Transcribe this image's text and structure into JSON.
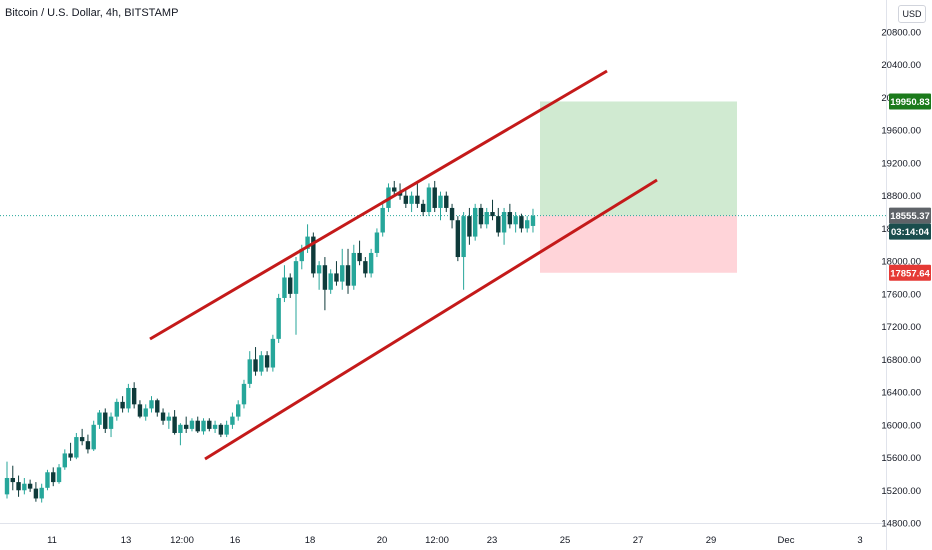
{
  "header": {
    "title": "Bitcoin / U.S. Dollar, 4h, BITSTAMP",
    "currency_button": "USD"
  },
  "colors": {
    "up": "#26a69a",
    "down": "#0e3a3a",
    "channel": "#c41a1a",
    "target_zone": "#c8e6c9",
    "stop_zone": "#ffcdd2",
    "target_label": "#1b7a1b",
    "stop_label": "#e53935",
    "price_label": "#5f6368",
    "countdown_label": "#1a4d4d"
  },
  "chart_data": {
    "type": "candlestick",
    "title": "Bitcoin / U.S. Dollar, 4h, BITSTAMP",
    "ylim": [
      14800,
      21000
    ],
    "y_ticks": [
      "14800.00",
      "15200.00",
      "15600.00",
      "16000.00",
      "16400.00",
      "16800.00",
      "17200.00",
      "17600.00",
      "18000.00",
      "18400.00",
      "18800.00",
      "19200.00",
      "19600.00",
      "20000.00",
      "20400.00",
      "20800.00"
    ],
    "x_ticks": [
      "11",
      "13",
      "12:00",
      "16",
      "18",
      "20",
      "12:00",
      "23",
      "25",
      "27",
      "29",
      "Dec",
      "3"
    ],
    "price_labels": {
      "target": "19950.83",
      "current": "18555.37",
      "countdown": "03:14:04",
      "stop": "17857.64"
    },
    "current_price": 18555.37,
    "target_price": 19950.83,
    "stop_price": 17857.64,
    "candles": [
      [
        15150,
        15550,
        15100,
        15350
      ],
      [
        15350,
        15500,
        15200,
        15300
      ],
      [
        15300,
        15380,
        15120,
        15200
      ],
      [
        15200,
        15350,
        15150,
        15280
      ],
      [
        15280,
        15330,
        15180,
        15220
      ],
      [
        15220,
        15300,
        15060,
        15100
      ],
      [
        15100,
        15280,
        15050,
        15230
      ],
      [
        15230,
        15450,
        15200,
        15420
      ],
      [
        15420,
        15480,
        15250,
        15300
      ],
      [
        15300,
        15520,
        15280,
        15480
      ],
      [
        15480,
        15700,
        15450,
        15650
      ],
      [
        15650,
        15780,
        15560,
        15600
      ],
      [
        15600,
        15900,
        15580,
        15850
      ],
      [
        15850,
        15950,
        15750,
        15800
      ],
      [
        15800,
        15880,
        15650,
        15700
      ],
      [
        15700,
        16050,
        15680,
        16000
      ],
      [
        16000,
        16180,
        15950,
        16150
      ],
      [
        16150,
        16200,
        15900,
        15950
      ],
      [
        15950,
        16150,
        15850,
        16100
      ],
      [
        16100,
        16320,
        16050,
        16280
      ],
      [
        16280,
        16350,
        16150,
        16200
      ],
      [
        16200,
        16500,
        16150,
        16450
      ],
      [
        16450,
        16520,
        16200,
        16250
      ],
      [
        16250,
        16300,
        16080,
        16100
      ],
      [
        16100,
        16250,
        16050,
        16200
      ],
      [
        16200,
        16350,
        16150,
        16300
      ],
      [
        16300,
        16320,
        16100,
        16150
      ],
      [
        16150,
        16200,
        16000,
        16050
      ],
      [
        16050,
        16150,
        15950,
        16100
      ],
      [
        16100,
        16180,
        15880,
        15900
      ],
      [
        15900,
        16020,
        15750,
        16000
      ],
      [
        16000,
        16100,
        15900,
        15950
      ],
      [
        15950,
        16080,
        15920,
        16050
      ],
      [
        16050,
        16100,
        15900,
        15920
      ],
      [
        15920,
        16080,
        15880,
        16050
      ],
      [
        16050,
        16080,
        15920,
        15950
      ],
      [
        15950,
        16050,
        15900,
        16000
      ],
      [
        16000,
        16020,
        15850,
        15880
      ],
      [
        15880,
        16050,
        15850,
        16000
      ],
      [
        16000,
        16150,
        15950,
        16100
      ],
      [
        16100,
        16300,
        16050,
        16250
      ],
      [
        16250,
        16550,
        16200,
        16500
      ],
      [
        16500,
        16900,
        16450,
        16800
      ],
      [
        16800,
        16950,
        16600,
        16650
      ],
      [
        16650,
        16900,
        16600,
        16850
      ],
      [
        16850,
        16900,
        16650,
        16700
      ],
      [
        16700,
        17100,
        16650,
        17050
      ],
      [
        17050,
        17600,
        17000,
        17550
      ],
      [
        17550,
        17950,
        17500,
        17800
      ],
      [
        17800,
        17850,
        17550,
        17600
      ],
      [
        17600,
        18050,
        17100,
        18000
      ],
      [
        18000,
        18200,
        17900,
        18150
      ],
      [
        18150,
        18450,
        18100,
        18300
      ],
      [
        18300,
        18350,
        17800,
        17850
      ],
      [
        17850,
        18000,
        17650,
        17950
      ],
      [
        17950,
        18050,
        17400,
        17650
      ],
      [
        17650,
        17900,
        17600,
        17850
      ],
      [
        17850,
        18000,
        17700,
        17750
      ],
      [
        17750,
        18150,
        17650,
        17950
      ],
      [
        17950,
        18150,
        17600,
        17700
      ],
      [
        17700,
        18200,
        17650,
        18100
      ],
      [
        18100,
        18250,
        17950,
        18000
      ],
      [
        18000,
        18050,
        17800,
        17850
      ],
      [
        17850,
        18150,
        17800,
        18100
      ],
      [
        18100,
        18400,
        18050,
        18350
      ],
      [
        18350,
        18700,
        18300,
        18650
      ],
      [
        18650,
        18950,
        18600,
        18900
      ],
      [
        18900,
        18980,
        18800,
        18850
      ],
      [
        18850,
        18950,
        18750,
        18800
      ],
      [
        18800,
        18900,
        18650,
        18700
      ],
      [
        18700,
        18850,
        18600,
        18800
      ],
      [
        18800,
        18980,
        18650,
        18700
      ],
      [
        18700,
        18750,
        18550,
        18600
      ],
      [
        18600,
        18950,
        18550,
        18900
      ],
      [
        18900,
        18980,
        18600,
        18650
      ],
      [
        18650,
        18850,
        18500,
        18800
      ],
      [
        18800,
        18850,
        18600,
        18650
      ],
      [
        18650,
        18700,
        18400,
        18500
      ],
      [
        18500,
        18550,
        18000,
        18050
      ],
      [
        18050,
        18600,
        17650,
        18550
      ],
      [
        18550,
        18650,
        18200,
        18300
      ],
      [
        18300,
        18700,
        18250,
        18650
      ],
      [
        18650,
        18700,
        18400,
        18450
      ],
      [
        18450,
        18650,
        18400,
        18600
      ],
      [
        18600,
        18750,
        18500,
        18550
      ],
      [
        18550,
        18650,
        18300,
        18350
      ],
      [
        18350,
        18650,
        18200,
        18600
      ],
      [
        18600,
        18700,
        18400,
        18450
      ],
      [
        18450,
        18600,
        18350,
        18550
      ],
      [
        18550,
        18580,
        18350,
        18400
      ],
      [
        18400,
        18550,
        18350,
        18500
      ],
      [
        18430,
        18640,
        18350,
        18555
      ]
    ]
  }
}
